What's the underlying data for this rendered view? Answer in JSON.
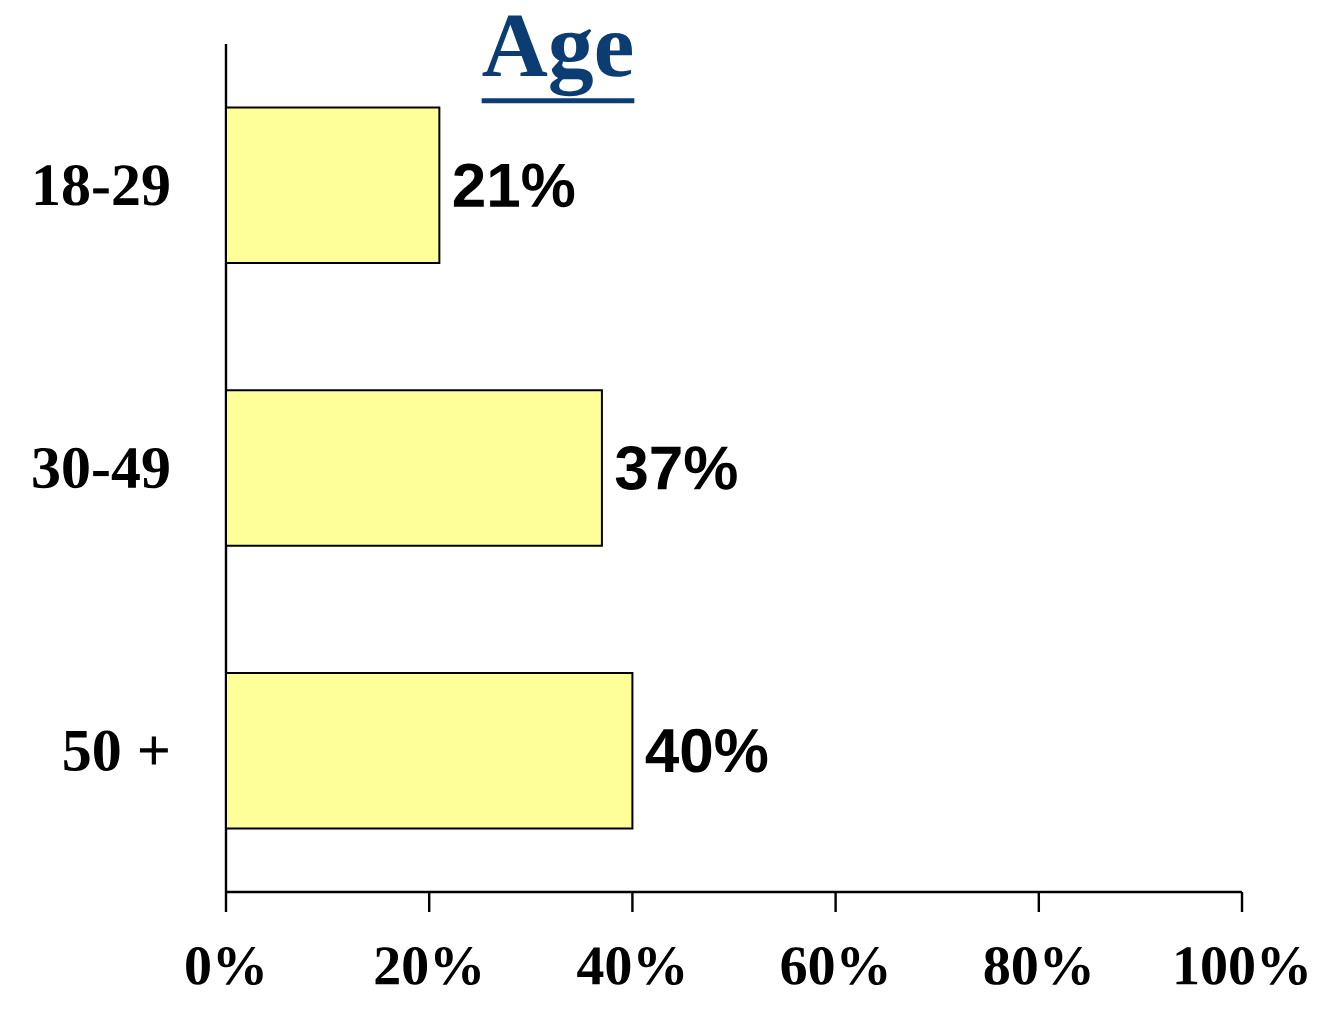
{
  "chart_data": {
    "type": "bar",
    "orientation": "horizontal",
    "title": "Age",
    "categories": [
      "18-29",
      "30-49",
      "50 +"
    ],
    "values": [
      21,
      37,
      40
    ],
    "value_labels": [
      "21%",
      "37%",
      "40%"
    ],
    "color": "#ffff99",
    "xlim": [
      0,
      100
    ],
    "xticks": [
      {
        "value": 0,
        "label": "0%"
      },
      {
        "value": 20,
        "label": "20%"
      },
      {
        "value": 40,
        "label": "40%"
      },
      {
        "value": 60,
        "label": "60%"
      },
      {
        "value": 80,
        "label": "80%"
      },
      {
        "value": 100,
        "label": "100%"
      }
    ]
  }
}
